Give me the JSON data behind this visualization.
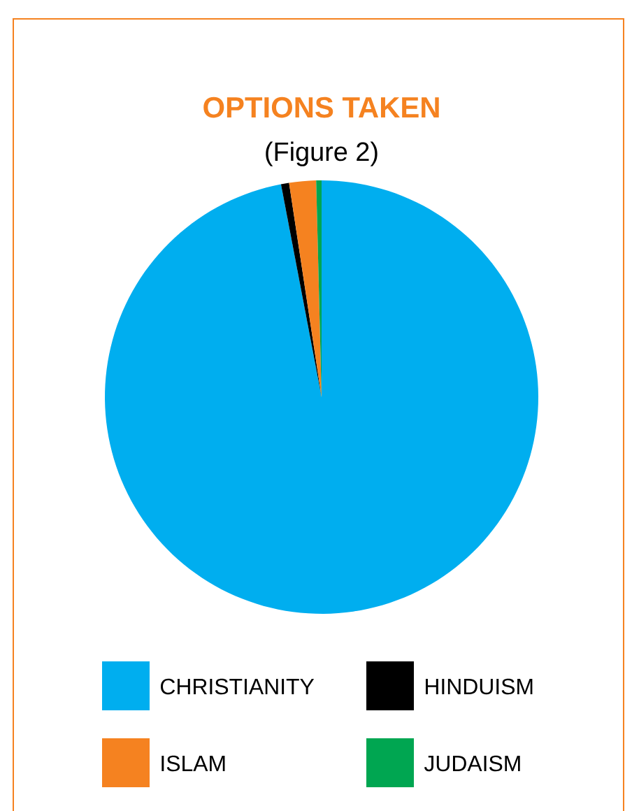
{
  "chart_data": {
    "type": "pie",
    "title": "OPTIONS TAKEN",
    "subtitle": "(Figure 2)",
    "categories": [
      "CHRISTIANITY",
      "HINDUISM",
      "ISLAM",
      "JUDAISM"
    ],
    "values": [
      97,
      0.6,
      2,
      0.4
    ],
    "colors": [
      "#00aeef",
      "#000000",
      "#f58220",
      "#00a651"
    ],
    "legend": "bottom"
  }
}
